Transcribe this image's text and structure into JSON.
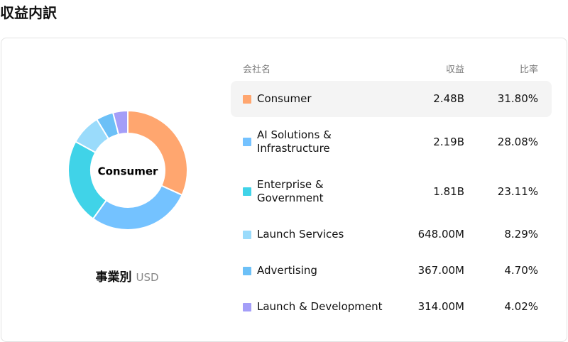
{
  "header": {
    "title": "収益内訳"
  },
  "chart_data": {
    "type": "pie",
    "donut": true,
    "center_label": "Consumer",
    "footer": {
      "title": "事業別",
      "unit": "USD"
    },
    "columns": [
      "会社名",
      "収益",
      "比率"
    ],
    "categories": [
      "Consumer",
      "AI Solutions & Infrastructure",
      "Enterprise & Government",
      "Launch Services",
      "Advertising",
      "Launch & Development"
    ],
    "values": [
      31.8,
      28.08,
      23.11,
      8.29,
      4.7,
      4.02
    ],
    "value_labels": [
      "31.80%",
      "28.08%",
      "23.11%",
      "8.29%",
      "4.70%",
      "4.02%"
    ],
    "revenue_labels": [
      "2.48B",
      "2.19B",
      "1.81B",
      "648.00M",
      "367.00M",
      "314.00M"
    ],
    "colors": [
      "#ffa66f",
      "#74c2ff",
      "#40d3e8",
      "#9adbfb",
      "#6cc0f7",
      "#a49ef8"
    ],
    "highlighted": 0
  }
}
